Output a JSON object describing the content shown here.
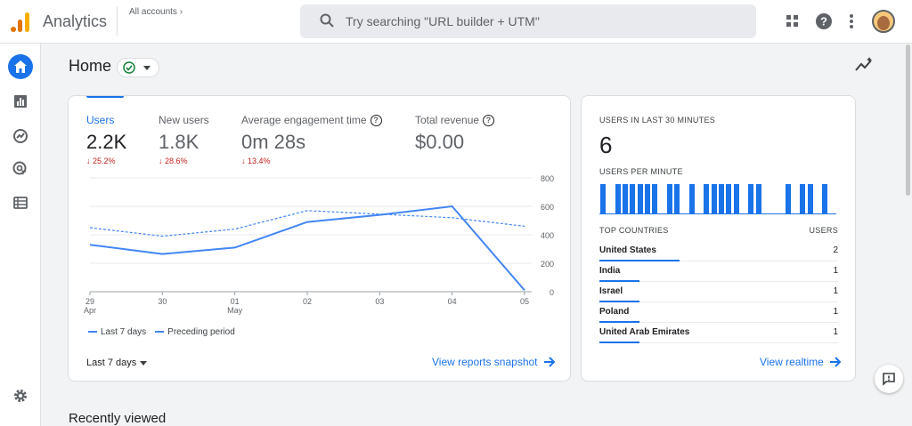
{
  "header": {
    "app_title": "Analytics",
    "accounts_label": "All accounts",
    "search_placeholder": "Try searching \"URL builder + UTM\""
  },
  "page": {
    "title": "Home",
    "recently_viewed": "Recently viewed"
  },
  "metrics": [
    {
      "label": "Users",
      "value": "2.2K",
      "change": "25.2%"
    },
    {
      "label": "New users",
      "value": "1.8K",
      "change": "28.6%"
    },
    {
      "label": "Average engagement time",
      "value": "0m 28s",
      "change": "13.4%"
    },
    {
      "label": "Total revenue",
      "value": "$0.00",
      "change": ""
    }
  ],
  "chart_data": {
    "type": "line",
    "categories": [
      "29 Apr",
      "30",
      "01 May",
      "02",
      "03",
      "04",
      "05"
    ],
    "series": [
      {
        "name": "Last 7 days",
        "values": [
          330,
          265,
          310,
          490,
          540,
          600,
          10
        ]
      },
      {
        "name": "Preceding period",
        "values": [
          450,
          390,
          440,
          570,
          545,
          520,
          460
        ]
      }
    ],
    "ylim": [
      0,
      800
    ],
    "y_ticks": [
      "800",
      "600",
      "400",
      "200",
      "0"
    ],
    "x_ticks": [
      [
        "29",
        "Apr"
      ],
      [
        "30",
        ""
      ],
      [
        "01",
        "May"
      ],
      [
        "02",
        ""
      ],
      [
        "03",
        ""
      ],
      [
        "04",
        ""
      ],
      [
        "05",
        ""
      ]
    ],
    "grid": true,
    "legend_position": "bottom-left"
  },
  "legend": {
    "current": "Last 7 days",
    "previous": "Preceding period"
  },
  "date_range": "Last 7 days",
  "snapshot_link": "View reports snapshot",
  "realtime": {
    "heading": "USERS IN LAST 30 MINUTES",
    "count": "6",
    "per_minute_heading": "USERS PER MINUTE",
    "per_minute_bars": [
      1,
      0,
      1,
      1,
      1,
      1,
      1,
      1,
      0,
      1,
      1,
      0,
      1,
      0,
      1,
      1,
      1,
      1,
      1,
      0,
      1,
      1,
      0,
      0,
      0,
      1,
      0,
      1,
      1,
      0,
      1,
      0
    ],
    "countries_heading": "TOP COUNTRIES",
    "users_heading": "USERS",
    "countries": [
      {
        "name": "United States",
        "users": "2",
        "share": 1.0
      },
      {
        "name": "India",
        "users": "1",
        "share": 0.5
      },
      {
        "name": "Israel",
        "users": "1",
        "share": 0.5
      },
      {
        "name": "Poland",
        "users": "1",
        "share": 0.5
      },
      {
        "name": "United Arab Emirates",
        "users": "1",
        "share": 0.5
      }
    ],
    "link": "View realtime"
  },
  "colors": {
    "accent": "#1a73e8",
    "negative": "#c5221f",
    "line": "#4285f4"
  }
}
